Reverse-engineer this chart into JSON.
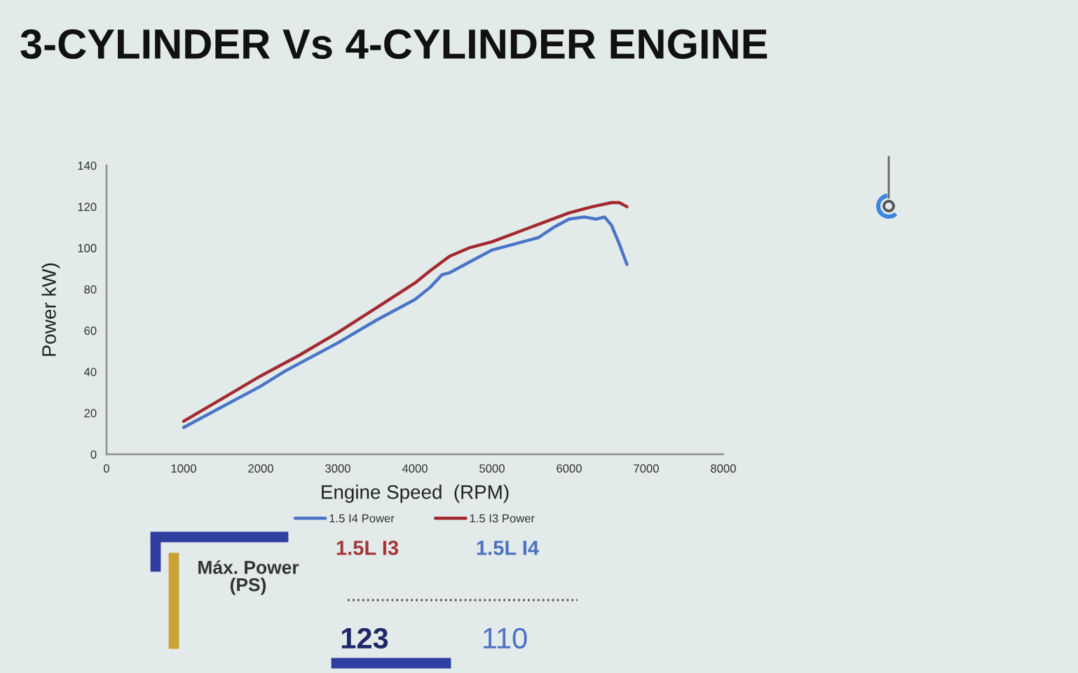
{
  "chart_data": [
    {
      "type": "line",
      "title": "3-CYLINDER Vs 4-CYLINDER ENGINE",
      "xlabel": "Engine Speed  (RPM)",
      "ylabel": "Power kW)",
      "series": [
        {
          "name": "1.5 I4 Power",
          "color": "#4a74c8",
          "x": [
            1000,
            1500,
            2000,
            2300,
            2600,
            3000,
            3500,
            4000,
            4200,
            4350,
            4450,
            4700,
            5000,
            5300,
            5600,
            5800,
            6000,
            6200,
            6350,
            6460,
            6550,
            6650,
            6750
          ],
          "values": [
            13,
            23,
            33,
            40,
            46,
            54,
            65,
            75,
            81,
            87,
            88,
            93,
            99,
            102,
            105,
            110,
            114,
            115,
            114,
            115,
            111,
            102,
            92
          ]
        },
        {
          "name": "1.5 I3 Power",
          "color": "#a32a30",
          "x": [
            1000,
            1500,
            2000,
            2500,
            3000,
            3500,
            4000,
            4200,
            4450,
            4700,
            5000,
            5500,
            6000,
            6300,
            6550,
            6650,
            6750
          ],
          "values": [
            16,
            27,
            38,
            48,
            59,
            71,
            83,
            89,
            96,
            100,
            103,
            110,
            117,
            120,
            122,
            122,
            120
          ]
        }
      ],
      "xlim": [
        0,
        8000
      ],
      "xticks": [
        0,
        1000,
        2000,
        3000,
        4000,
        5000,
        6000,
        7000,
        8000
      ],
      "ylim": [
        0,
        140
      ],
      "yticks": [
        0,
        20,
        40,
        60,
        80,
        100,
        120,
        140
      ],
      "legend": "bottom",
      "marker": "none",
      "line_style": "solid",
      "grid": false
    },
    {
      "type": "other",
      "annotations": [
        "Máx. Power\n(PS)"
      ],
      "categories": [
        "1.5L I3",
        "1.5L I4"
      ],
      "values": [
        123,
        110
      ],
      "colors": [
        "#1f2768",
        "#4d70c2"
      ],
      "data_labels": true
    }
  ]
}
